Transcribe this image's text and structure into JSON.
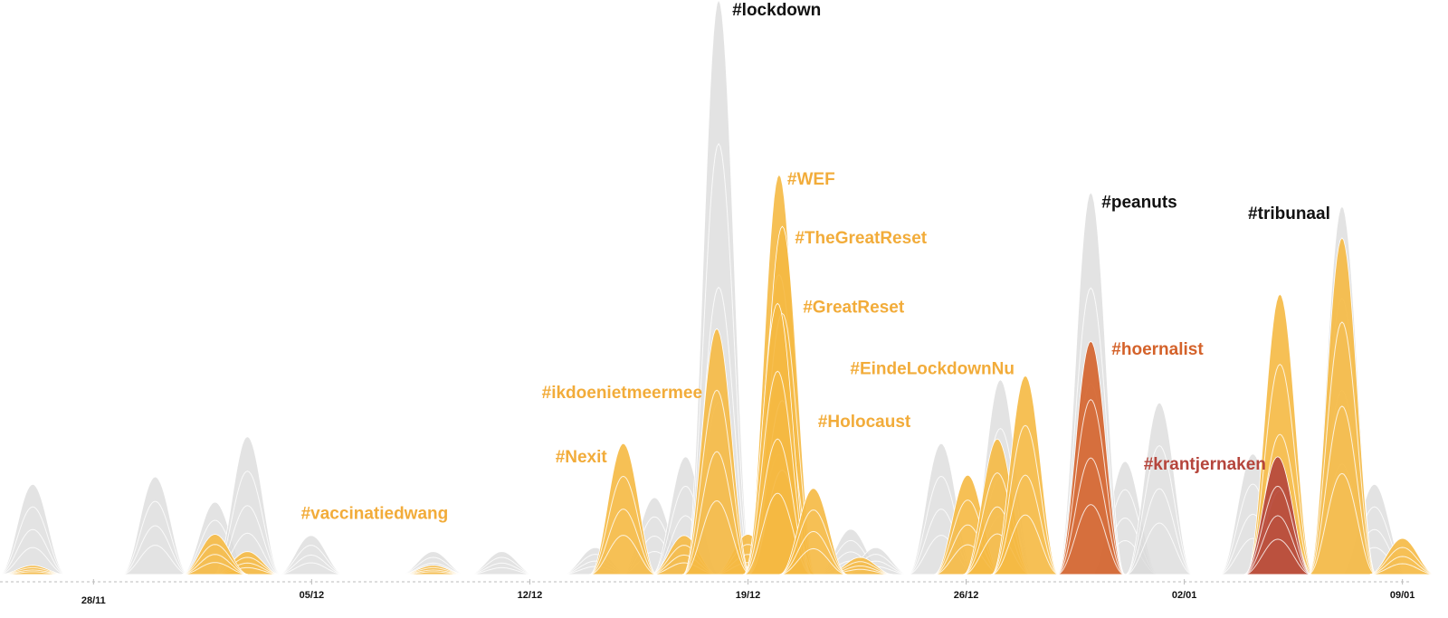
{
  "chart_data": {
    "type": "area",
    "xlim": [
      -3,
      42.3
    ],
    "ylim": [
      0,
      100
    ],
    "xticks": [
      {
        "value": 0,
        "label": "28/11"
      },
      {
        "value": 7,
        "label": "05/12"
      },
      {
        "value": 14,
        "label": "12/12"
      },
      {
        "value": 21,
        "label": "19/12"
      },
      {
        "value": 28,
        "label": "26/12"
      },
      {
        "value": 35,
        "label": "02/01"
      },
      {
        "value": 42,
        "label": "09/01"
      }
    ],
    "series": [
      {
        "color": "#d9d9d9",
        "x": [
          -1.95,
          1.98,
          3.9,
          4.94,
          6.98,
          10.9,
          13.1,
          16.1,
          18.0,
          19.0,
          24.3,
          25.1,
          27.2,
          29.1,
          33.1,
          34.2,
          37.2,
          41.1
        ],
        "values": [
          15.7,
          17,
          12.6,
          24,
          6.8,
          4,
          4,
          4.7,
          13.4,
          20.5,
          7.9,
          4.7,
          22.8,
          33.9,
          19.7,
          29.9,
          21,
          15.7
        ]
      },
      {
        "name": "#lockdown",
        "color": "#d9d9d9",
        "x": [
          20.06
        ],
        "values": [
          100
        ]
      },
      {
        "name": "#peanuts",
        "color": "#d9d9d9",
        "x": [
          32.0
        ],
        "values": [
          66.5
        ]
      },
      {
        "name": "#tribunaal",
        "color": "#d9d9d9",
        "x": [
          40.06
        ],
        "values": [
          64.1
        ]
      },
      {
        "color": "#f5b942",
        "x": [
          -1.95,
          4.94,
          10.9,
          18.95,
          21.0,
          24.6,
          28.05,
          29.0,
          38.07,
          40.06,
          42.0
        ],
        "values": [
          1.6,
          4,
          1.6,
          6.8,
          7,
          3,
          17.3,
          23.6,
          48.8,
          58.6,
          6.3
        ]
      },
      {
        "name": "#vaccinatiedwang",
        "color": "#f5b942",
        "x": [
          3.9
        ],
        "values": [
          7
        ]
      },
      {
        "name": "#Nexit",
        "color": "#f5b942",
        "x": [
          17.0
        ],
        "values": [
          22.8
        ]
      },
      {
        "name": "#ikdoenietmeermee",
        "color": "#f5b942",
        "x": [
          20.0
        ],
        "values": [
          42.8
        ]
      },
      {
        "name": "#WEF",
        "color": "#f5b942",
        "x": [
          22.0
        ],
        "values": [
          69.6
        ]
      },
      {
        "name": "#TheGreatReset",
        "color": "#f5b942",
        "x": [
          22.1
        ],
        "values": [
          60.6
        ]
      },
      {
        "name": "#GreatReset",
        "color": "#f5b942",
        "x": [
          21.95
        ],
        "values": [
          47.2
        ]
      },
      {
        "name": "#Holocaust",
        "color": "#f5b942",
        "x": [
          23.1
        ],
        "values": [
          15
        ]
      },
      {
        "name": "#EindeLockdownNu",
        "color": "#f5b942",
        "x": [
          29.9
        ],
        "values": [
          34.6
        ]
      },
      {
        "name": "#hoernalist",
        "color": "#d4622a",
        "x": [
          32.0
        ],
        "values": [
          40.6
        ]
      },
      {
        "name": "#krantjernaken",
        "color": "#b5453c",
        "x": [
          38.0
        ],
        "values": [
          20.5
        ]
      }
    ]
  }
}
